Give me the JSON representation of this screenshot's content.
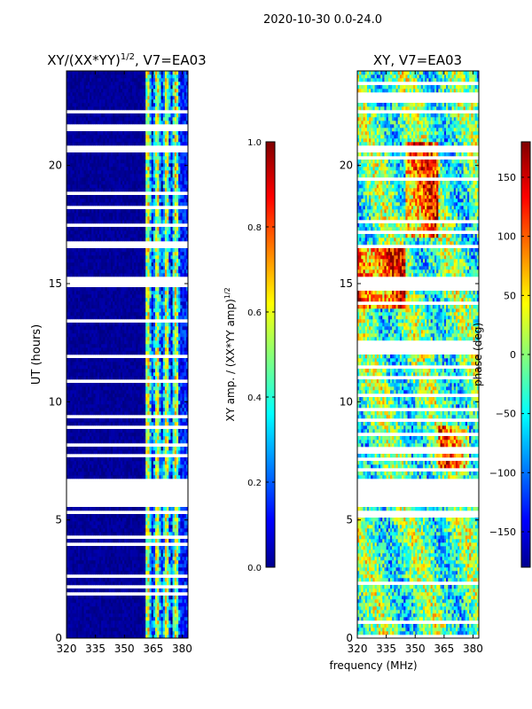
{
  "page_title": "2020-10-30 0.0-24.0",
  "shared_xlabel": "frequency (MHz)",
  "chart_data": [
    {
      "id": "amp-ratio",
      "type": "heatmap",
      "title": "XY/(XX*YY)",
      "title_exponent": "1/2",
      "title_suffix": ", V7=EA03",
      "xlabel": "",
      "ylabel": "UT (hours)",
      "xlim": [
        320,
        383
      ],
      "ylim": [
        0,
        24
      ],
      "xticks": [
        320,
        335,
        350,
        365,
        380
      ],
      "yticks": [
        0,
        5,
        10,
        15,
        20
      ],
      "gaps_ut": [
        [
          5.5,
          6.7
        ],
        [
          14.9,
          15.1
        ],
        [
          16.55,
          16.7
        ],
        [
          20.6,
          20.8
        ]
      ],
      "colorbar": {
        "label": "XY amp. / (XX*YY amp)",
        "label_exponent": "1/2",
        "range": [
          0.0,
          1.0
        ],
        "ticks": [
          "0.0",
          "0.2",
          "0.4",
          "0.6",
          "0.8",
          "1.0"
        ],
        "tick_values": [
          0.0,
          0.2,
          0.4,
          0.6,
          0.8,
          1.0
        ],
        "colormap": "jet"
      }
    },
    {
      "id": "phase",
      "type": "heatmap",
      "title": "XY, V7=EA03",
      "xlabel": "frequency (MHz)",
      "ylabel": "",
      "xlim": [
        320,
        383
      ],
      "ylim": [
        0,
        24
      ],
      "xticks": [
        320,
        335,
        350,
        365,
        380
      ],
      "yticks": [
        0,
        5,
        10,
        15,
        20
      ],
      "gaps_ut": [
        [
          5.5,
          6.7
        ],
        [
          14.9,
          15.1
        ],
        [
          16.55,
          16.7
        ],
        [
          20.6,
          20.8
        ]
      ],
      "colorbar": {
        "label": "phase (deg)",
        "range": [
          -180,
          180
        ],
        "ticks": [
          "−150",
          "−100",
          "−50",
          "0",
          "50",
          "100",
          "150"
        ],
        "tick_values": [
          -150,
          -100,
          -50,
          0,
          50,
          100,
          150
        ],
        "colormap": "jet"
      }
    }
  ],
  "colors": {
    "jet_dark_blue": "#00008f",
    "jet_blue": "#0000ff",
    "jet_cyan": "#00ffff",
    "jet_yellow": "#ffff00",
    "jet_red": "#ff0000",
    "jet_dark_red": "#800000"
  }
}
